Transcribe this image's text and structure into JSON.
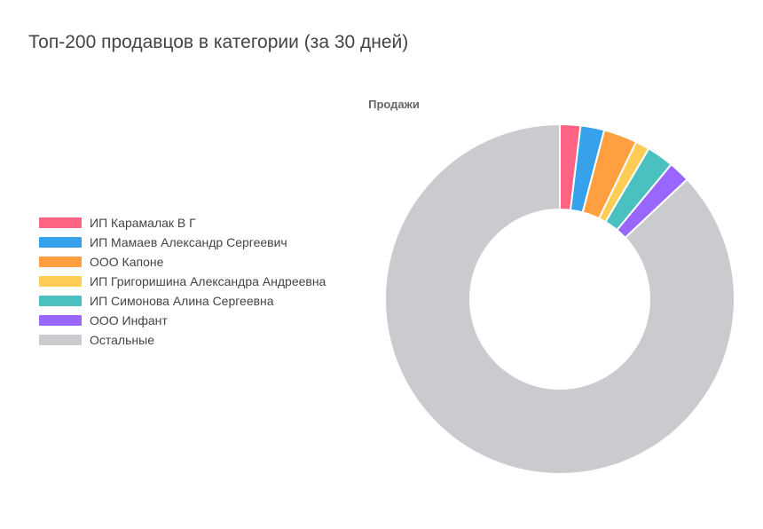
{
  "page": {
    "title": "Топ-200 продавцов в категории (за 30 дней)"
  },
  "chart_data": {
    "type": "pie",
    "variant": "doughnut",
    "title": "Продажи",
    "legend_position": "left",
    "categories": [
      "ИП Карамалак В Г",
      "ИП Мамаев Александр Сергеевич",
      "ООО Капоне",
      "ИП Григоришина Александра Андреевна",
      "ИП Симонова Алина Сергеевна",
      "ООО Инфант",
      "Остальные"
    ],
    "values": [
      1.9,
      2.2,
      3.1,
      1.3,
      2.5,
      2.0,
      87.0
    ],
    "colors": [
      "#ff6384",
      "#36a2eb",
      "#ff9f40",
      "#ffcd56",
      "#4bc0c0",
      "#9966ff",
      "#c9cbcf"
    ]
  }
}
